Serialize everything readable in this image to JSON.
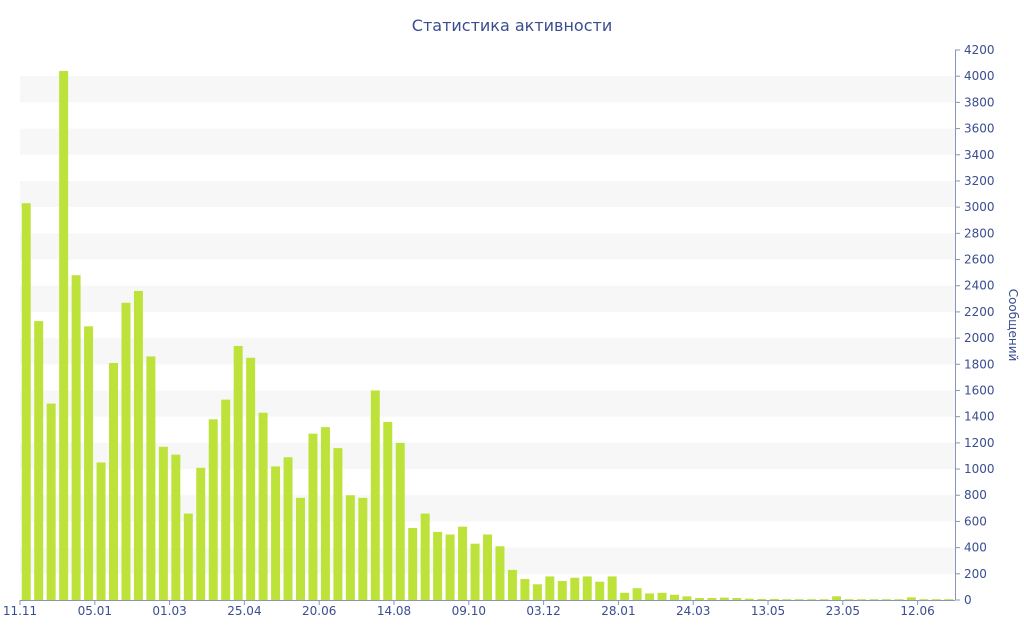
{
  "chart_data": {
    "type": "bar",
    "title": "Статистика активности",
    "xlabel": "",
    "ylabel": "Сообщений",
    "ylim": [
      0,
      4200
    ],
    "y_axis_side": "right",
    "y_ticks": [
      0,
      200,
      400,
      600,
      800,
      1000,
      1200,
      1400,
      1600,
      1800,
      2000,
      2200,
      2400,
      2600,
      2800,
      3000,
      3200,
      3400,
      3600,
      3800,
      4000,
      4200
    ],
    "x_tick_labels": [
      {
        "index": 0,
        "label": "11.11"
      },
      {
        "index": 6,
        "label": "05.01"
      },
      {
        "index": 12,
        "label": "01.03"
      },
      {
        "index": 18,
        "label": "25.04"
      },
      {
        "index": 24,
        "label": "20.06"
      },
      {
        "index": 30,
        "label": "14.08"
      },
      {
        "index": 36,
        "label": "09.10"
      },
      {
        "index": 42,
        "label": "03.12"
      },
      {
        "index": 48,
        "label": "28.01"
      },
      {
        "index": 54,
        "label": "24.03"
      },
      {
        "index": 60,
        "label": "13.05"
      },
      {
        "index": 66,
        "label": "23.05"
      },
      {
        "index": 72,
        "label": "12.06"
      }
    ],
    "values": [
      3030,
      2130,
      1500,
      4040,
      2480,
      2090,
      1050,
      1810,
      2270,
      2360,
      1860,
      1170,
      1110,
      660,
      1010,
      1380,
      1530,
      1940,
      1850,
      1430,
      1020,
      1090,
      780,
      1270,
      1320,
      1160,
      800,
      780,
      1600,
      1360,
      1200,
      550,
      660,
      520,
      500,
      560,
      430,
      500,
      410,
      230,
      160,
      120,
      180,
      145,
      170,
      180,
      140,
      180,
      55,
      90,
      50,
      55,
      40,
      28,
      15,
      15,
      18,
      15,
      10,
      8,
      8,
      6,
      6,
      6,
      6,
      28,
      6,
      6,
      6,
      6,
      6,
      20,
      6,
      6,
      6
    ],
    "grid": true,
    "bar_color": "#bde23a",
    "band_color": "#f7f7f7",
    "text_color": "#3a4d8f",
    "legend": "none"
  }
}
